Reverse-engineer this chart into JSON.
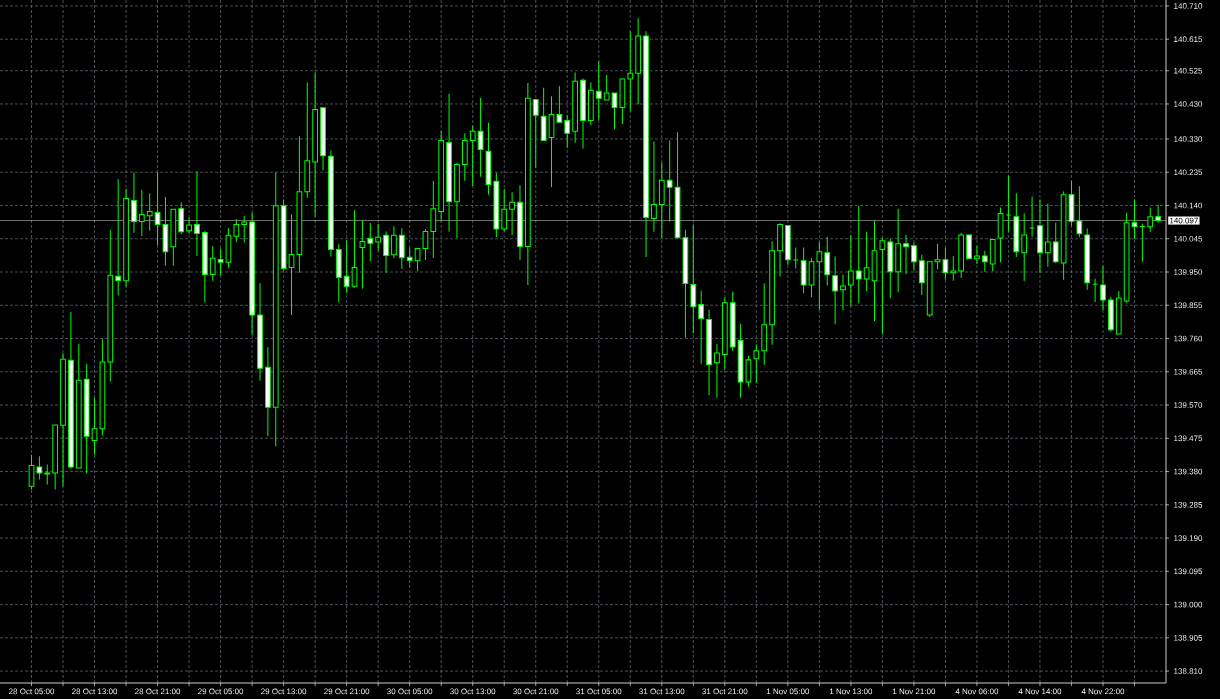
{
  "chart_data": {
    "type": "candlestick",
    "categories": [
      "28 Oct 05:00",
      null,
      null,
      null,
      null,
      null,
      null,
      null,
      "28 Oct 13:00",
      null,
      null,
      null,
      null,
      null,
      null,
      null,
      "28 Oct 21:00",
      null,
      null,
      null,
      null,
      null,
      null,
      null,
      "29 Oct 05:00",
      null,
      null,
      null,
      null,
      null,
      null,
      null,
      "29 Oct 13:00",
      null,
      null,
      null,
      null,
      null,
      null,
      null,
      "29 Oct 21:00",
      null,
      null,
      null,
      null,
      null,
      null,
      null,
      "30 Oct 05:00",
      null,
      null,
      null,
      null,
      null,
      null,
      null,
      "30 Oct 13:00",
      null,
      null,
      null,
      null,
      null,
      null,
      null,
      "30 Oct 21:00",
      null,
      null,
      null,
      null,
      null,
      null,
      null,
      "31 Oct 05:00",
      null,
      null,
      null,
      null,
      null,
      null,
      null,
      "31 Oct 13:00",
      null,
      null,
      null,
      null,
      null,
      null,
      null,
      "31 Oct 21:00",
      null,
      null,
      null,
      null,
      null,
      null,
      null,
      "1 Nov 05:00",
      null,
      null,
      null,
      null,
      null,
      null,
      null,
      "1 Nov 13:00",
      null,
      null,
      null,
      null,
      null,
      null,
      null,
      "1 Nov 21:00",
      null,
      null,
      null,
      null,
      null,
      null,
      null,
      "4 Nov 06:00",
      null,
      null,
      null,
      null,
      null,
      null,
      null,
      "4 Nov 14:00",
      null,
      null,
      null,
      null,
      null,
      null,
      null,
      "4 Nov 22:00",
      null,
      null,
      null,
      null,
      null,
      null,
      null
    ],
    "ohlc": [
      [
        139.338,
        139.428,
        139.329,
        139.397
      ],
      [
        139.393,
        139.424,
        139.357,
        139.376
      ],
      [
        139.373,
        139.4,
        139.343,
        139.376
      ],
      [
        139.376,
        139.513,
        139.329,
        139.513
      ],
      [
        139.512,
        139.718,
        139.338,
        139.701
      ],
      [
        139.698,
        139.836,
        139.388,
        139.393
      ],
      [
        139.39,
        139.745,
        139.39,
        139.641
      ],
      [
        139.644,
        139.688,
        139.376,
        139.481
      ],
      [
        139.469,
        139.59,
        139.428,
        139.502
      ],
      [
        139.502,
        139.758,
        139.483,
        139.693
      ],
      [
        139.693,
        140.07,
        139.637,
        139.941
      ],
      [
        139.938,
        140.215,
        139.883,
        139.926
      ],
      [
        139.925,
        140.188,
        139.908,
        140.16
      ],
      [
        140.154,
        140.234,
        140.062,
        140.094
      ],
      [
        140.094,
        140.184,
        140.053,
        140.114
      ],
      [
        140.111,
        140.174,
        140.068,
        140.123
      ],
      [
        140.12,
        140.236,
        140.027,
        140.086
      ],
      [
        140.086,
        140.164,
        139.968,
        140.008
      ],
      [
        140.022,
        140.129,
        139.968,
        140.129
      ],
      [
        140.131,
        140.149,
        140.058,
        140.065
      ],
      [
        140.068,
        140.106,
        140.06,
        140.084
      ],
      [
        140.086,
        140.238,
        139.996,
        140.06
      ],
      [
        140.063,
        140.067,
        139.863,
        139.943
      ],
      [
        139.943,
        140.024,
        139.925,
        139.989
      ],
      [
        139.986,
        140.017,
        139.941,
        139.978
      ],
      [
        139.978,
        140.075,
        139.962,
        140.055
      ],
      [
        140.052,
        140.101,
        140.036,
        140.086
      ],
      [
        140.086,
        140.11,
        140.034,
        140.093
      ],
      [
        140.093,
        140.12,
        139.77,
        139.827
      ],
      [
        139.827,
        139.918,
        139.64,
        139.675
      ],
      [
        139.678,
        139.735,
        139.481,
        139.564
      ],
      [
        139.564,
        140.234,
        139.452,
        140.139
      ],
      [
        140.139,
        140.157,
        139.954,
        139.96
      ],
      [
        139.963,
        140.115,
        139.827,
        140.0
      ],
      [
        140.0,
        140.338,
        139.948,
        140.179
      ],
      [
        140.179,
        140.491,
        140.162,
        140.268
      ],
      [
        140.264,
        140.519,
        140.108,
        140.414
      ],
      [
        140.419,
        140.419,
        140.241,
        140.282
      ],
      [
        140.281,
        140.297,
        139.994,
        140.014
      ],
      [
        140.014,
        140.03,
        139.863,
        139.934
      ],
      [
        139.938,
        140.041,
        139.891,
        139.909
      ],
      [
        139.909,
        140.127,
        139.904,
        139.963
      ],
      [
        140.02,
        140.098,
        139.902,
        140.037
      ],
      [
        140.046,
        140.09,
        139.981,
        140.032
      ],
      [
        140.036,
        140.087,
        140.011,
        140.049
      ],
      [
        140.055,
        140.066,
        139.948,
        139.997
      ],
      [
        139.999,
        140.081,
        139.99,
        140.055
      ],
      [
        140.055,
        140.075,
        139.959,
        139.991
      ],
      [
        139.992,
        140.02,
        139.963,
        139.983
      ],
      [
        139.982,
        140.017,
        139.953,
        140.017
      ],
      [
        140.017,
        140.072,
        139.984,
        140.066
      ],
      [
        140.066,
        140.21,
        139.99,
        140.131
      ],
      [
        140.123,
        140.353,
        140.094,
        140.326
      ],
      [
        140.32,
        140.459,
        140.065,
        140.151
      ],
      [
        140.151,
        140.263,
        140.047,
        140.257
      ],
      [
        140.257,
        140.346,
        140.211,
        140.326
      ],
      [
        140.326,
        140.368,
        140.196,
        140.352
      ],
      [
        140.352,
        140.447,
        140.222,
        140.3
      ],
      [
        140.295,
        140.376,
        140.171,
        140.2
      ],
      [
        140.209,
        140.233,
        140.05,
        140.073
      ],
      [
        140.073,
        140.187,
        140.065,
        140.129
      ],
      [
        140.129,
        140.178,
        140.056,
        140.149
      ],
      [
        140.149,
        140.198,
        139.984,
        140.023
      ],
      [
        140.023,
        140.49,
        139.913,
        140.446
      ],
      [
        140.443,
        140.443,
        140.248,
        140.398
      ],
      [
        140.395,
        140.476,
        140.326,
        140.326
      ],
      [
        140.334,
        140.452,
        140.193,
        140.4
      ],
      [
        140.4,
        140.481,
        140.378,
        140.378
      ],
      [
        140.383,
        140.398,
        140.306,
        140.346
      ],
      [
        140.352,
        140.52,
        140.319,
        140.495
      ],
      [
        140.498,
        140.503,
        140.303,
        140.383
      ],
      [
        140.383,
        140.492,
        140.369,
        140.469
      ],
      [
        140.466,
        140.552,
        140.384,
        140.446
      ],
      [
        140.441,
        140.513,
        140.441,
        140.461
      ],
      [
        140.461,
        140.461,
        140.357,
        140.42
      ],
      [
        140.42,
        140.503,
        140.373,
        140.501
      ],
      [
        140.501,
        140.638,
        140.409,
        140.518
      ],
      [
        140.518,
        140.675,
        140.429,
        140.624
      ],
      [
        140.624,
        140.638,
        139.993,
        140.106
      ],
      [
        140.103,
        140.323,
        140.065,
        140.143
      ],
      [
        140.143,
        140.263,
        140.048,
        140.212
      ],
      [
        140.212,
        140.326,
        140.094,
        140.192
      ],
      [
        140.192,
        140.349,
        140.046,
        140.048
      ],
      [
        140.048,
        140.071,
        139.762,
        139.917
      ],
      [
        139.914,
        140.086,
        139.774,
        139.851
      ],
      [
        139.857,
        139.897,
        139.688,
        139.817
      ],
      [
        139.814,
        139.842,
        139.599,
        139.685
      ],
      [
        139.691,
        139.745,
        139.591,
        139.719
      ],
      [
        139.714,
        139.877,
        139.671,
        139.862
      ],
      [
        139.862,
        139.894,
        139.725,
        139.736
      ],
      [
        139.754,
        139.802,
        139.591,
        139.636
      ],
      [
        139.636,
        139.711,
        139.622,
        139.699
      ],
      [
        139.702,
        139.743,
        139.633,
        139.725
      ],
      [
        139.725,
        139.917,
        139.685,
        139.799
      ],
      [
        139.799,
        140.037,
        139.742,
        140.011
      ],
      [
        140.011,
        140.089,
        139.937,
        140.086
      ],
      [
        140.083,
        140.083,
        139.971,
        139.985
      ],
      [
        139.984,
        140.02,
        139.96,
        139.984
      ],
      [
        139.982,
        140.02,
        139.889,
        139.913
      ],
      [
        139.913,
        139.989,
        139.878,
        139.979
      ],
      [
        139.979,
        140.036,
        139.842,
        140.008
      ],
      [
        140.005,
        140.051,
        139.912,
        139.942
      ],
      [
        139.939,
        139.994,
        139.801,
        139.896
      ],
      [
        139.899,
        139.942,
        139.841,
        139.91
      ],
      [
        139.913,
        140.054,
        139.852,
        139.953
      ],
      [
        139.953,
        140.139,
        139.861,
        139.93
      ],
      [
        139.93,
        140.065,
        139.895,
        139.962
      ],
      [
        139.925,
        140.096,
        139.809,
        140.011
      ],
      [
        140.014,
        140.048,
        139.772,
        140.039
      ],
      [
        140.036,
        140.045,
        139.875,
        139.951
      ],
      [
        139.951,
        140.131,
        139.892,
        140.031
      ],
      [
        140.031,
        140.056,
        139.944,
        140.022
      ],
      [
        140.025,
        140.034,
        139.955,
        139.979
      ],
      [
        139.982,
        139.999,
        139.884,
        139.919
      ],
      [
        139.827,
        139.979,
        139.821,
        139.979
      ],
      [
        139.979,
        140.031,
        139.958,
        139.985
      ],
      [
        139.985,
        140.019,
        139.928,
        139.948
      ],
      [
        139.948,
        139.996,
        139.925,
        139.953
      ],
      [
        139.953,
        140.062,
        139.933,
        140.056
      ],
      [
        140.056,
        140.056,
        139.988,
        139.988
      ],
      [
        139.988,
        140.025,
        139.973,
        139.996
      ],
      [
        139.996,
        140.011,
        139.951,
        139.979
      ],
      [
        139.973,
        140.043,
        139.952,
        140.043
      ],
      [
        140.047,
        140.134,
        139.978,
        140.117
      ],
      [
        140.113,
        140.226,
        140.066,
        140.113
      ],
      [
        140.108,
        140.175,
        139.993,
        140.008
      ],
      [
        140.005,
        140.118,
        139.924,
        140.056
      ],
      [
        140.076,
        140.166,
        140.051,
        140.076
      ],
      [
        140.082,
        140.157,
        139.948,
        140.005
      ],
      [
        140.005,
        140.145,
        139.965,
        140.036
      ],
      [
        140.036,
        140.091,
        139.976,
        139.979
      ],
      [
        139.976,
        140.18,
        139.928,
        140.171
      ],
      [
        140.171,
        140.21,
        140.082,
        140.095
      ],
      [
        140.096,
        140.195,
        140.049,
        140.059
      ],
      [
        140.056,
        140.074,
        139.899,
        139.919
      ],
      [
        139.915,
        139.931,
        139.864,
        139.915
      ],
      [
        139.913,
        139.968,
        139.841,
        139.87
      ],
      [
        139.87,
        139.879,
        139.779,
        139.785
      ],
      [
        139.773,
        139.896,
        139.773,
        139.876
      ],
      [
        139.867,
        140.119,
        139.862,
        140.091
      ],
      [
        140.091,
        140.157,
        140.045,
        140.079
      ],
      [
        140.08,
        140.088,
        139.979,
        140.08
      ],
      [
        140.079,
        140.134,
        140.065,
        140.108
      ],
      [
        140.108,
        140.142,
        140.091,
        140.097
      ]
    ],
    "color": "#00ff00",
    "colors": [
      "#000000",
      "#ffffff",
      "#000000",
      "#000000",
      "#000000",
      "#ffffff",
      "#000000",
      "#ffffff",
      "#000000",
      "#000000",
      "#000000",
      "#ffffff",
      "#000000",
      "#ffffff",
      "#000000",
      "#000000",
      "#ffffff",
      "#ffffff",
      "#000000",
      "#ffffff",
      "#000000",
      "#ffffff",
      "#ffffff",
      "#000000",
      "#ffffff",
      "#000000",
      "#000000",
      "#000000",
      "#ffffff",
      "#ffffff",
      "#ffffff",
      "#000000",
      "#ffffff",
      "#000000",
      "#000000",
      "#000000",
      "#000000",
      "#ffffff",
      "#ffffff",
      "#ffffff",
      "#ffffff",
      "#000000",
      "#000000",
      "#ffffff",
      "#000000",
      "#ffffff",
      "#000000",
      "#ffffff",
      "#ffffff",
      "#000000",
      "#000000",
      "#000000",
      "#000000",
      "#ffffff",
      "#000000",
      "#000000",
      "#000000",
      "#ffffff",
      "#ffffff",
      "#ffffff",
      "#000000",
      "#000000",
      "#ffffff",
      "#000000",
      "#ffffff",
      "#ffffff",
      "#000000",
      "#ffffff",
      "#ffffff",
      "#000000",
      "#ffffff",
      "#000000",
      "#ffffff",
      "#000000",
      "#ffffff",
      "#000000",
      "#000000",
      "#000000",
      "#ffffff",
      "#000000",
      "#000000",
      "#ffffff",
      "#ffffff",
      "#ffffff",
      "#ffffff",
      "#ffffff",
      "#ffffff",
      "#000000",
      "#000000",
      "#ffffff",
      "#ffffff",
      "#000000",
      "#000000",
      "#000000",
      "#000000",
      "#000000",
      "#ffffff",
      "#00ff00",
      "#ffffff",
      "#000000",
      "#000000",
      "#ffffff",
      "#ffffff",
      "#000000",
      "#000000",
      "#ffffff",
      "#000000",
      "#000000",
      "#000000",
      "#ffffff",
      "#000000",
      "#ffffff",
      "#ffffff",
      "#ffffff",
      "#000000",
      "#000000",
      "#ffffff",
      "#000000",
      "#000000",
      "#ffffff",
      "#000000",
      "#ffffff",
      "#000000",
      "#000000",
      "#00ff00",
      "#ffffff",
      "#000000",
      "#00ff00",
      "#ffffff",
      "#000000",
      "#ffffff",
      "#000000",
      "#ffffff",
      "#ffffff",
      "#ffffff",
      "#00ff00",
      "#ffffff",
      "#ffffff",
      "#000000",
      "#000000",
      "#ffffff",
      "#00ff00",
      "#000000",
      "#ffffff"
    ],
    "ylim": [
      138.776,
      140.727
    ],
    "yticks": [
      {
        "value": 140.71,
        "label": "140.710"
      },
      140.615,
      140.525,
      {
        "value": 140.43,
        "label": "140.430"
      },
      {
        "value": 140.33,
        "label": "140.330"
      },
      140.235,
      {
        "value": 140.14,
        "label": "140.140"
      },
      140.045,
      {
        "value": 139.95,
        "label": "139.950"
      },
      139.855,
      {
        "value": 139.76,
        "label": "139.760"
      },
      139.665,
      {
        "value": 139.57,
        "label": "139.570"
      },
      139.475,
      {
        "value": 139.38,
        "label": "139.380"
      },
      139.285,
      {
        "value": 139.19,
        "label": "139.190"
      },
      139.095,
      {
        "value": 139.0,
        "label": "139.000"
      },
      138.905,
      {
        "value": 138.81,
        "label": "138.810"
      }
    ],
    "ref_lines": [
      {
        "axis": "y",
        "value": 140.097,
        "label": "140.097",
        "color": "#c0c0c0"
      }
    ],
    "grid": true
  }
}
